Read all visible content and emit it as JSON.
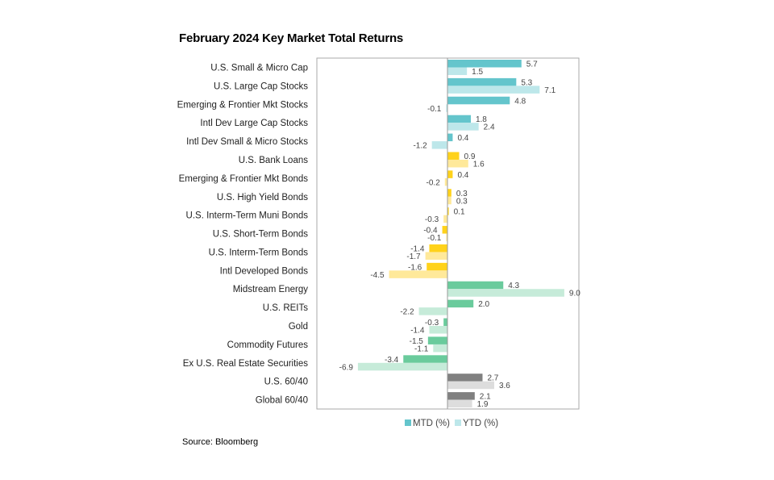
{
  "chart_data": {
    "type": "bar",
    "orientation": "horizontal",
    "title": "February 2024 Key Market Total Returns",
    "categories": [
      "U.S. Small & Micro Cap",
      "U.S. Large Cap Stocks",
      "Emerging & Frontier Mkt Stocks",
      "Intl Dev Large Cap Stocks",
      "Intl Dev Small & Micro Stocks",
      "U.S. Bank Loans",
      "Emerging & Frontier Mkt Bonds",
      "U.S. High Yield Bonds",
      "U.S. Interm-Term Muni Bonds",
      "U.S. Short-Term Bonds",
      "U.S. Interm-Term Bonds",
      "Intl Developed Bonds",
      "Midstream Energy",
      "U.S. REITs",
      "Gold",
      "Commodity Futures",
      "Ex U.S. Real Estate Securities",
      "U.S. 60/40",
      "Global 60/40"
    ],
    "groups": [
      "equity",
      "equity",
      "equity",
      "equity",
      "equity",
      "bond",
      "bond",
      "bond",
      "bond",
      "bond",
      "bond",
      "bond",
      "real",
      "real",
      "real",
      "real",
      "real",
      "mix",
      "mix"
    ],
    "series": [
      {
        "name": "MTD (%)",
        "values": [
          5.7,
          5.3,
          4.8,
          1.8,
          0.4,
          0.9,
          0.4,
          0.3,
          0.1,
          -0.4,
          -1.4,
          -1.6,
          4.3,
          2.0,
          -0.3,
          -1.5,
          -3.4,
          2.7,
          2.1
        ]
      },
      {
        "name": "YTD (%)",
        "values": [
          1.5,
          7.1,
          -0.1,
          2.4,
          -1.2,
          1.6,
          -0.2,
          0.3,
          -0.3,
          -0.1,
          -1.7,
          -4.5,
          9.0,
          -2.2,
          -1.4,
          -1.1,
          -6.9,
          3.6,
          1.9
        ]
      }
    ],
    "xlim": [
      -10,
      10
    ],
    "grid": false,
    "legend": "bottom",
    "colors": {
      "equity": [
        "#64C5CC",
        "#BDE7EA"
      ],
      "bond": [
        "#FFD21A",
        "#FFE99A"
      ],
      "real": [
        "#6ACB9C",
        "#C6EBD9"
      ],
      "mix": [
        "#808080",
        "#DDDDDD"
      ]
    }
  },
  "source": "Source: Bloomberg"
}
